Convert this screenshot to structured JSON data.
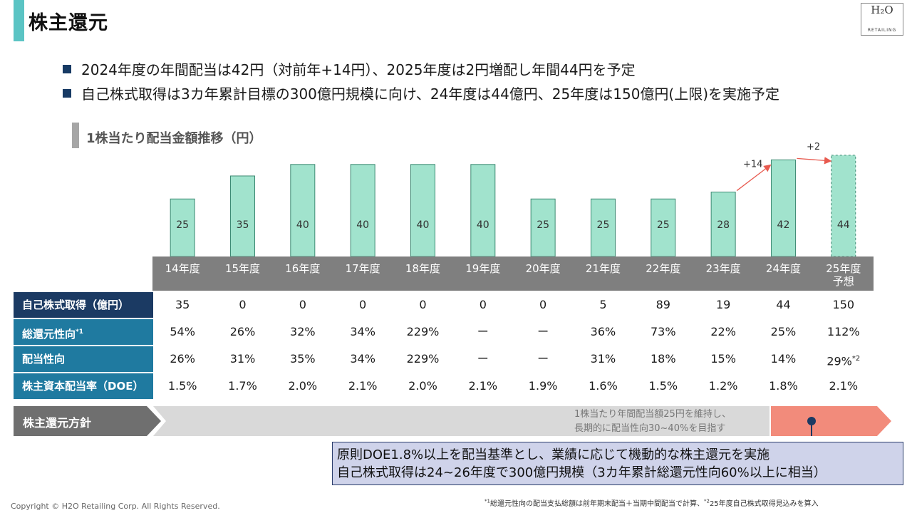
{
  "page_title": "株主還元",
  "logo": {
    "top": "H₂O",
    "bottom": "RETAILING"
  },
  "bullets": [
    "2024年度の年間配当は42円（対前年+14円）、2025年度は2円増配し年間44円を予定",
    "自己株式取得は3カ年累計目標の300億円規模に向け、24年度は44億円、25年度は150億円(上限)を実施予定"
  ],
  "chart_title": "1株当たり配当金額推移（円）",
  "chart_data": {
    "type": "bar",
    "title": "1株当たり配当金額推移（円）",
    "categories": [
      "14年度",
      "15年度",
      "16年度",
      "17年度",
      "18年度",
      "19年度",
      "20年度",
      "21年度",
      "22年度",
      "23年度",
      "24年度",
      "25年度\n予想"
    ],
    "values": [
      25,
      35,
      40,
      40,
      40,
      40,
      25,
      25,
      25,
      28,
      42,
      44
    ],
    "forecast_index": 11,
    "annotations": [
      {
        "text": "+14",
        "from": 9,
        "to": 10
      },
      {
        "text": "+2",
        "from": 10,
        "to": 11
      }
    ],
    "colors": {
      "bar_fill": "#a1e3cd",
      "bar_stroke": "#3d8a73",
      "arrow": "#e85a4f"
    }
  },
  "table": {
    "rows": [
      {
        "label": "自己株式取得（億円）",
        "color": "#1b3a63",
        "values": [
          "35",
          "0",
          "0",
          "0",
          "0",
          "0",
          "0",
          "5",
          "89",
          "19",
          "44",
          "150"
        ]
      },
      {
        "label": "総還元性向",
        "label_sup": "*1",
        "color": "#1f7aa0",
        "values": [
          "54%",
          "26%",
          "32%",
          "34%",
          "229%",
          "ー",
          "ー",
          "36%",
          "73%",
          "22%",
          "25%",
          "112%"
        ]
      },
      {
        "label": "配当性向",
        "color": "#1f7aa0",
        "values": [
          "26%",
          "31%",
          "35%",
          "34%",
          "229%",
          "ー",
          "ー",
          "31%",
          "18%",
          "15%",
          "14%",
          "29%"
        ],
        "last_sup": "*2"
      },
      {
        "label": "株主資本配当率（DOE）",
        "color": "#1f7aa0",
        "values": [
          "1.5%",
          "1.7%",
          "2.0%",
          "2.1%",
          "2.0%",
          "2.1%",
          "1.9%",
          "1.6%",
          "1.5%",
          "1.2%",
          "1.8%",
          "2.1%"
        ]
      }
    ]
  },
  "policy": {
    "label": "株主還元方針",
    "note_line1": "1株当たり年間配当額25円を維持し、",
    "note_line2": "長期的に配当性向30~40%を目指す",
    "box_line1": "原則DOE1.8%以上を配当基準とし、業績に応じて機動的な株主還元を実施",
    "box_line2": "自己株式取得は24~26年度で300億円規模（3カ年累計総還元性向60%以上に相当）",
    "colors": {
      "label_bg": "#6f6f6f",
      "track": "#d9d9d9",
      "highlight": "#f28b7b",
      "box_bg": "#cfd3ea",
      "box_border": "#2a3d6b"
    }
  },
  "footnote": {
    "sup1": "*1",
    "text1": "総還元性向の配当支払総額は前年期末配当＋当期中間配当で計算、",
    "sup2": "*2",
    "text2": "25年度自己株式取得見込みを算入"
  },
  "copyright": "Copyright © H2O Retailing Corp. All Rights Reserved."
}
